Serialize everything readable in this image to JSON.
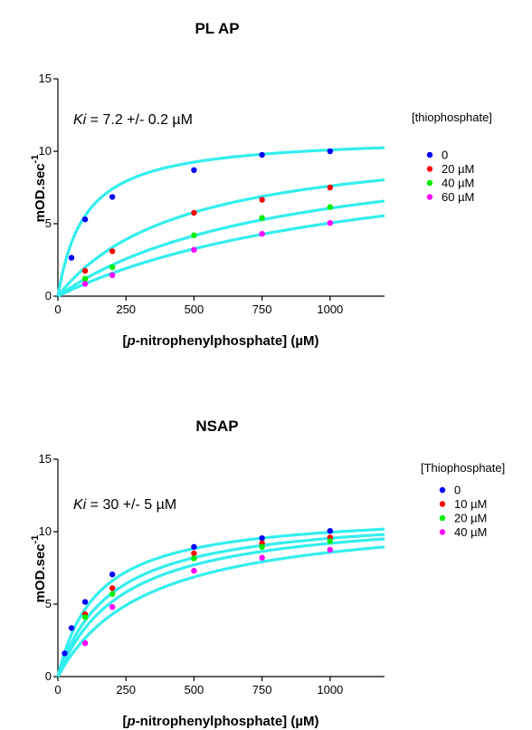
{
  "chart_data": [
    {
      "type": "scatter",
      "title": "PL AP",
      "xlabel_prefix": "[",
      "xlabel_italic": "p",
      "xlabel_rest": "-nitrophenylphosphate] (µM)",
      "ylabel_main": "mOD.sec",
      "ylabel_sup": "-1",
      "xlim": [
        0,
        1200
      ],
      "ylim": [
        0,
        15
      ],
      "xticks": [
        0,
        250,
        500,
        750,
        1000
      ],
      "yticks": [
        0,
        5,
        10,
        15
      ],
      "grid": false,
      "legend_title": "[thiophosphate]",
      "annotation": {
        "ki_label": "Ki",
        "ki_text": " = 7.2 +/- 0.2 µM"
      },
      "x": [
        25,
        50,
        100,
        200,
        500,
        750,
        1000
      ],
      "series": [
        {
          "name": "0",
          "color": "#0000ff",
          "fit": {
            "vmax": 11.1,
            "km": 100
          },
          "values": [
            null,
            2.65,
            5.3,
            6.85,
            8.7,
            9.75,
            10.0
          ]
        },
        {
          "name": "20 µM",
          "color": "#ff0000",
          "fit": {
            "vmax": 11.1,
            "km": 460
          },
          "values": [
            null,
            null,
            1.75,
            3.1,
            5.75,
            6.65,
            7.5
          ]
        },
        {
          "name": "40 µM",
          "color": "#00ee00",
          "fit": {
            "vmax": 11.1,
            "km": 830
          },
          "values": [
            null,
            null,
            1.2,
            2.0,
            4.2,
            5.4,
            6.15
          ]
        },
        {
          "name": "60 µM",
          "color": "#ff00ff",
          "fit": {
            "vmax": 11.1,
            "km": 1200
          },
          "values": [
            null,
            null,
            0.85,
            1.45,
            3.2,
            4.3,
            5.05
          ]
        }
      ]
    },
    {
      "type": "scatter",
      "title": "NSAP",
      "xlabel_prefix": "[",
      "xlabel_italic": "p",
      "xlabel_rest": "-nitrophenylphosphate] (µM)",
      "ylabel_main": "mOD.sec",
      "ylabel_sup": "-1",
      "xlim": [
        0,
        1200
      ],
      "ylim": [
        0,
        15
      ],
      "xticks": [
        0,
        250,
        500,
        750,
        1000
      ],
      "yticks": [
        0,
        5,
        10,
        15
      ],
      "grid": false,
      "legend_title": "[Thiophosphate]",
      "annotation": {
        "ki_label": "Ki",
        "ki_text": " = 30 +/- 5 µM"
      },
      "x": [
        25,
        50,
        100,
        200,
        500,
        750,
        1000
      ],
      "series": [
        {
          "name": "0",
          "color": "#0000ff",
          "fit": {
            "vmax": 11.4,
            "km": 145
          },
          "values": [
            1.6,
            3.35,
            5.15,
            7.05,
            8.95,
            9.55,
            10.05
          ]
        },
        {
          "name": "10 µM",
          "color": "#ff0000",
          "fit": {
            "vmax": 11.4,
            "km": 195
          },
          "values": [
            null,
            null,
            4.3,
            6.1,
            8.5,
            9.2,
            9.6
          ]
        },
        {
          "name": "20 µM",
          "color": "#00ee00",
          "fit": {
            "vmax": 11.4,
            "km": 240
          },
          "values": [
            null,
            null,
            4.1,
            5.7,
            8.15,
            8.95,
            9.35
          ]
        },
        {
          "name": "40 µM",
          "color": "#ff00ff",
          "fit": {
            "vmax": 11.4,
            "km": 330
          },
          "values": [
            null,
            null,
            2.3,
            4.8,
            7.3,
            8.2,
            8.75
          ]
        }
      ]
    }
  ],
  "fit_color": "#33eeee"
}
